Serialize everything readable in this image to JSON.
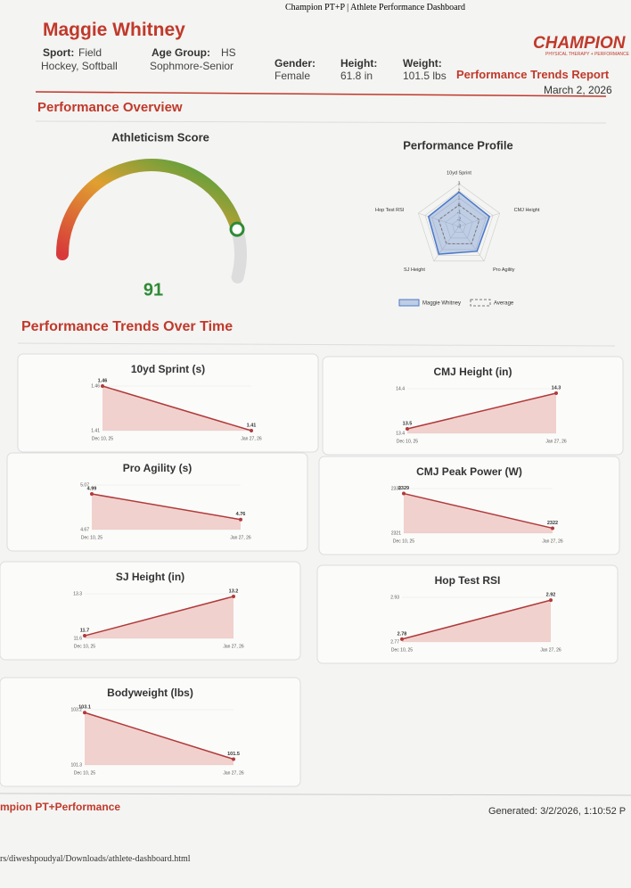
{
  "print_header": "Champion PT+P | Athlete Performance Dashboard",
  "header": {
    "name": "Maggie Whitney",
    "fields": [
      {
        "label": "Sport:",
        "value": "Field Hockey, Softball"
      },
      {
        "label": "Age Group:",
        "value": "HS Sophmore-Senior"
      },
      {
        "label": "Gender:",
        "value": "Female"
      },
      {
        "label": "Height:",
        "value": "61.8 in"
      },
      {
        "label": "Weight:",
        "value": "101.5 lbs"
      }
    ],
    "logo": "CHAMPION",
    "logo_sub": "PHYSICAL THERAPY + PERFORMANCE",
    "report_title": "Performance Trends Report",
    "date": "March 2, 2026"
  },
  "overview_title": "Performance Overview",
  "trends_title": "Performance Trends Over Time",
  "footer": {
    "brand": "mpion PT+Performance",
    "generated": "Generated: 3/2/2026, 1:10:52 P",
    "path": "rs/diweshpoudyal/Downloads/athlete-dashboard.html"
  },
  "chart_data": [
    {
      "type": "gauge",
      "title": "Athleticism Score",
      "value": 91,
      "ylim": [
        0,
        100
      ]
    },
    {
      "type": "radar",
      "title": "Performance Profile",
      "categories": [
        "10yd Sprint",
        "CMJ Height",
        "Pro Agility",
        "SJ Height",
        "Hop Test RSI"
      ],
      "ylim": [
        -3,
        3
      ],
      "yticks": [
        -3,
        -2,
        -1,
        0,
        1,
        2,
        3
      ],
      "series": [
        {
          "name": "Maggie Whitney",
          "color": "#4a78c8",
          "values": [
            1.8,
            1.5,
            1.3,
            1.8,
            1.5
          ]
        },
        {
          "name": "Average",
          "color": "#777777",
          "values": [
            0,
            0,
            0,
            0,
            0
          ]
        }
      ]
    },
    {
      "type": "line",
      "title": "10yd Sprint (s)",
      "categories": [
        "Dec 10, 25",
        "Jan 27, 26"
      ],
      "values": [
        1.46,
        1.41
      ],
      "ylim": [
        1.41,
        1.46
      ],
      "yticks": [
        1.41,
        1.46
      ],
      "color": "#b03a3a"
    },
    {
      "type": "line",
      "title": "CMJ Height (in)",
      "categories": [
        "Dec 10, 25",
        "Jan 27, 26"
      ],
      "values": [
        13.5,
        14.3
      ],
      "ylim": [
        13.4,
        14.4
      ],
      "yticks": [
        13.4,
        14.4
      ],
      "color": "#b03a3a"
    },
    {
      "type": "line",
      "title": "Pro Agility (s)",
      "categories": [
        "Dec 10, 25",
        "Jan 27, 26"
      ],
      "values": [
        4.99,
        4.76
      ],
      "ylim": [
        4.67,
        5.07
      ],
      "yticks": [
        4.67,
        5.07
      ],
      "color": "#b03a3a"
    },
    {
      "type": "line",
      "title": "CMJ Peak Power (W)",
      "categories": [
        "Dec 10, 25",
        "Jan 27, 26"
      ],
      "values": [
        2329,
        2322
      ],
      "ylim": [
        2321,
        2330
      ],
      "yticks": [
        2321,
        2330
      ],
      "color": "#b03a3a"
    },
    {
      "type": "line",
      "title": "SJ Height (in)",
      "categories": [
        "Dec 10, 25",
        "Jan 27, 26"
      ],
      "values": [
        11.7,
        13.2
      ],
      "ylim": [
        11.6,
        13.3
      ],
      "yticks": [
        11.6,
        13.3
      ],
      "color": "#b03a3a"
    },
    {
      "type": "line",
      "title": "Hop Test RSI",
      "categories": [
        "Dec 10, 25",
        "Jan 27, 26"
      ],
      "values": [
        2.78,
        2.92
      ],
      "ylim": [
        2.77,
        2.93
      ],
      "yticks": [
        2.77,
        2.93
      ],
      "color": "#b03a3a"
    },
    {
      "type": "line",
      "title": "Bodyweight (lbs)",
      "categories": [
        "Dec 10, 25",
        "Jan 27, 26"
      ],
      "values": [
        103.1,
        101.5
      ],
      "ylim": [
        101.3,
        103.2
      ],
      "yticks": [
        101.3,
        103.2
      ],
      "color": "#b03a3a"
    }
  ]
}
